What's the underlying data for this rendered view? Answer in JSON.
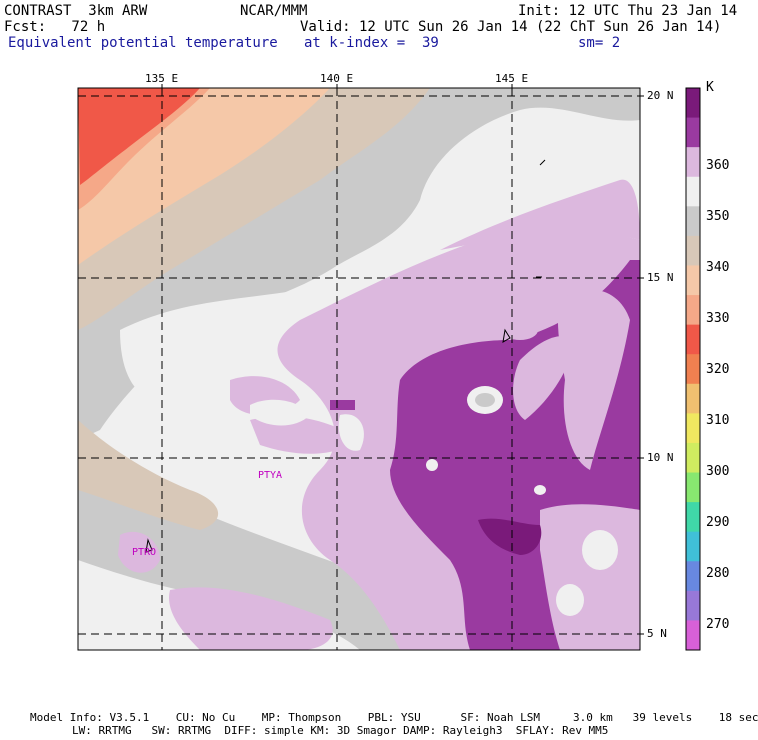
{
  "header": {
    "left1": "CONTRAST  3km ARW",
    "center1": "NCAR/MMM",
    "right1": "Init: 12 UTC Thu 23 Jan 14",
    "left2": "Fcst:   72 h",
    "right2": "Valid: 12 UTC Sun 26 Jan 14 (22 ChT Sun 26 Jan 14)",
    "field": "Equivalent potential temperature",
    "level": "at k-index =  39",
    "smooth": "sm= 2"
  },
  "map": {
    "lon_labels": [
      "135 E",
      "140 E",
      "145 E"
    ],
    "lat_labels": [
      "20 N",
      "15 N",
      "10 N",
      "5 N"
    ],
    "station_labels": [
      "PTYA",
      "PTRO"
    ]
  },
  "colorbar": {
    "unit": "K",
    "levels": [
      "360",
      "350",
      "340",
      "330",
      "320",
      "310",
      "300",
      "290",
      "280",
      "270"
    ],
    "colors": [
      "#7a1a7a",
      "#9a3aa0",
      "#dcb8de",
      "#f0f0f0",
      "#cacaca",
      "#d8c8b8",
      "#f5c8a8",
      "#f5a888",
      "#f05848",
      "#f08050",
      "#f0c070",
      "#f0e860",
      "#d0ec60",
      "#88e870",
      "#40d8a8",
      "#40c0d8",
      "#6888e0",
      "#9878d8",
      "#d860d8"
    ]
  },
  "footer": {
    "line1": "Model Info: V3.5.1    CU: No Cu    MP: Thompson    PBL: YSU      SF: Noah LSM     3.0 km   39 levels    18 sec",
    "line2": "LW: RRTMG   SW: RRTMG  DIFF: simple KM: 3D Smagor DAMP: Rayleigh3  SFLAY: Rev MM5"
  }
}
